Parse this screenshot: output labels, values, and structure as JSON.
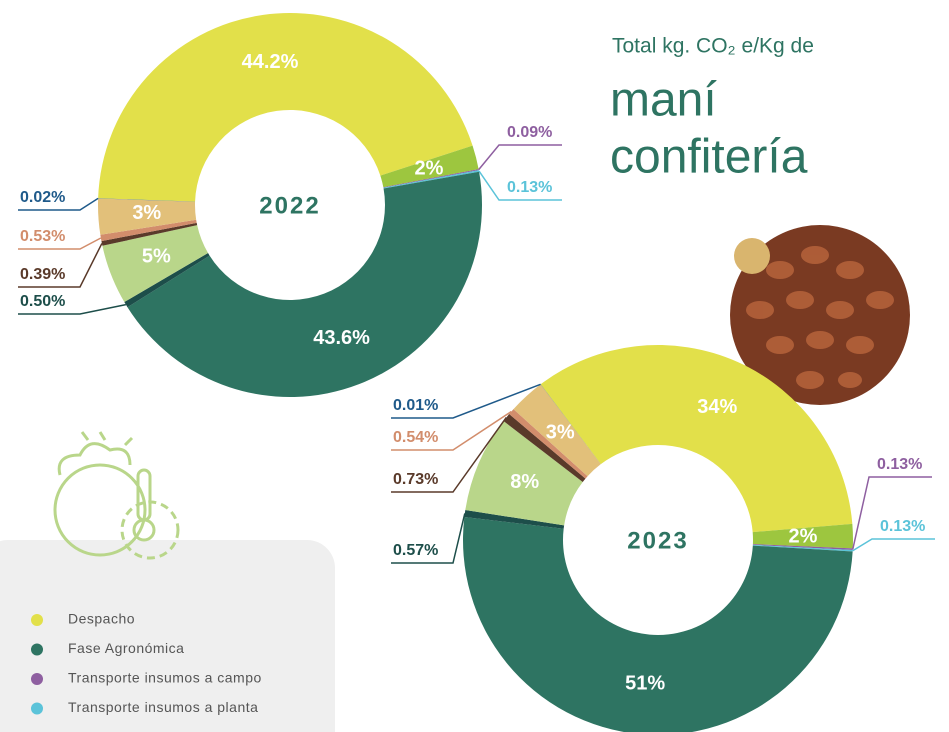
{
  "title": "Total kg. CO₂ e/Kg de",
  "heading": [
    "maní",
    "confitería"
  ],
  "chart_data": [
    {
      "type": "donut",
      "center_label": "2022",
      "categories": [
        "Despacho",
        null,
        "Transporte insumos a campo",
        "Transporte insumos a planta",
        "Fase Agronómica",
        null,
        null,
        null,
        null,
        null,
        null
      ],
      "values": [
        44.2,
        2,
        0.09,
        0.13,
        43.6,
        0.5,
        5,
        0.39,
        0.53,
        3,
        0.02
      ],
      "value_labels": [
        "44.2%",
        "2%",
        "0.09%",
        "0.13%",
        "43.6%",
        "0.50%",
        "5%",
        "0.39%",
        "0.53%",
        "3%",
        "0.02%"
      ],
      "colors": [
        "#e2e04a",
        "#9dc63f",
        "#8e5fa0",
        "#5bc3d9",
        "#2e7462",
        "#1d4e4a",
        "#b9d68a",
        "#5a3a2a",
        "#d28d6c",
        "#e2c07a",
        "#1f5a8a"
      ]
    },
    {
      "type": "donut",
      "center_label": "2023",
      "categories": [
        "Despacho",
        null,
        "Transporte insumos a campo",
        "Transporte insumos a planta",
        "Fase Agronómica",
        null,
        null,
        null,
        null,
        null,
        null
      ],
      "values": [
        34,
        2,
        0.13,
        0.13,
        51,
        0.57,
        8,
        0.73,
        0.54,
        3,
        0.01
      ],
      "value_labels": [
        "34%",
        "2%",
        "0.13%",
        "0.13%",
        "51%",
        "0.57%",
        "8%",
        "0.73%",
        "0.54%",
        "3%",
        "0.01%"
      ],
      "colors": [
        "#e2e04a",
        "#9dc63f",
        "#8e5fa0",
        "#5bc3d9",
        "#2e7462",
        "#1d4e4a",
        "#b9d68a",
        "#5a3a2a",
        "#d28d6c",
        "#e2c07a",
        "#1f5a8a"
      ]
    }
  ]
}
